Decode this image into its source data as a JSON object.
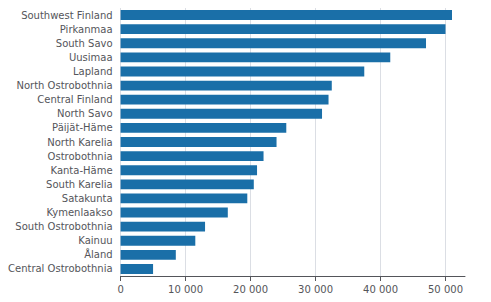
{
  "chart_data": {
    "type": "bar",
    "orientation": "horizontal",
    "categories": [
      "Central Ostrobothnia",
      "Åland",
      "Kainuu",
      "South Ostrobothnia",
      "Kymenlaakso",
      "Satakunta",
      "South Karelia",
      "Kanta-Häme",
      "Ostrobothnia",
      "North Karelia",
      "Päijät-Häme",
      "North Savo",
      "Central Finland",
      "North Ostrobothnia",
      "Lapland",
      "Uusimaa",
      "South Savo",
      "Pirkanmaa",
      "Southwest Finland"
    ],
    "values": [
      5000,
      8500,
      11500,
      13000,
      16500,
      19500,
      20500,
      21000,
      22000,
      24000,
      25500,
      31000,
      32000,
      32500,
      37500,
      41500,
      47000,
      50000,
      51000
    ],
    "color": "#1a6fa8",
    "xlim": [
      0,
      53000
    ],
    "xticks": [
      0,
      {
        "value": 10000,
        "label": "10 000"
      },
      {
        "value": 20000,
        "label": "20 000"
      },
      {
        "value": 30000,
        "label": "30 000"
      },
      {
        "value": 40000,
        "label": "40 000"
      },
      {
        "value": 50000,
        "label": "50 000"
      }
    ],
    "grid": true
  }
}
